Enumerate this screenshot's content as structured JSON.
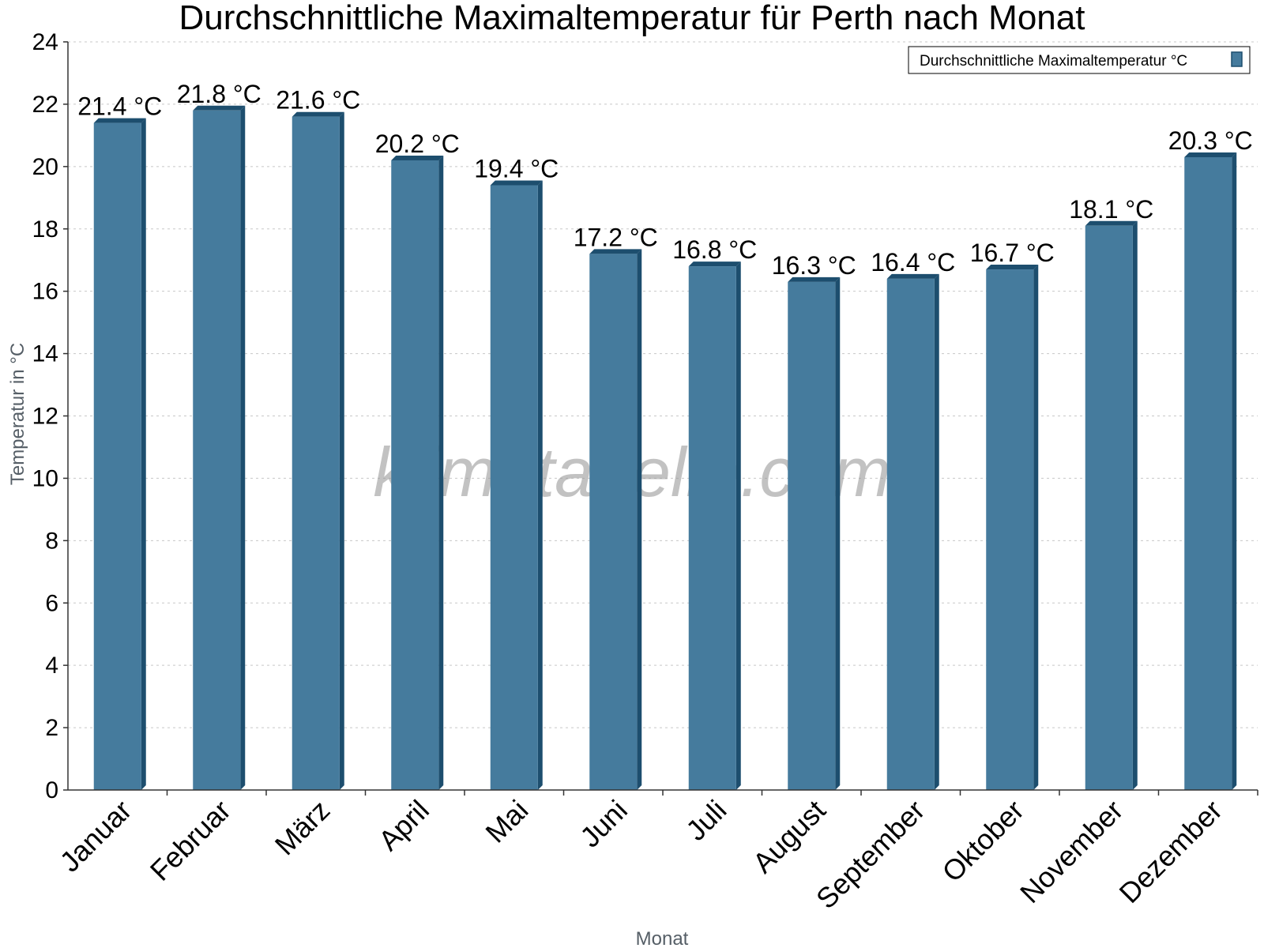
{
  "chart_data": {
    "type": "bar",
    "title": "Durchschnittliche Maximaltemperatur für Perth nach Monat",
    "xlabel": "Monat",
    "ylabel": "Temperatur in °C",
    "ylim": [
      0,
      24
    ],
    "ytick_step": 2,
    "grid": true,
    "legend_position": "top-right",
    "categories": [
      "Januar",
      "Februar",
      "März",
      "April",
      "Mai",
      "Juni",
      "Juli",
      "August",
      "September",
      "Oktober",
      "November",
      "Dezember"
    ],
    "series": [
      {
        "name": "Durchschnittliche Maximaltemperatur °C",
        "values": [
          21.4,
          21.8,
          21.6,
          20.2,
          19.4,
          17.2,
          16.8,
          16.3,
          16.4,
          16.7,
          18.1,
          20.3
        ],
        "unit": "°C",
        "color": "#457b9d",
        "edge_color": "#1d4e6e"
      }
    ],
    "watermark": "klimatabelle.com"
  }
}
